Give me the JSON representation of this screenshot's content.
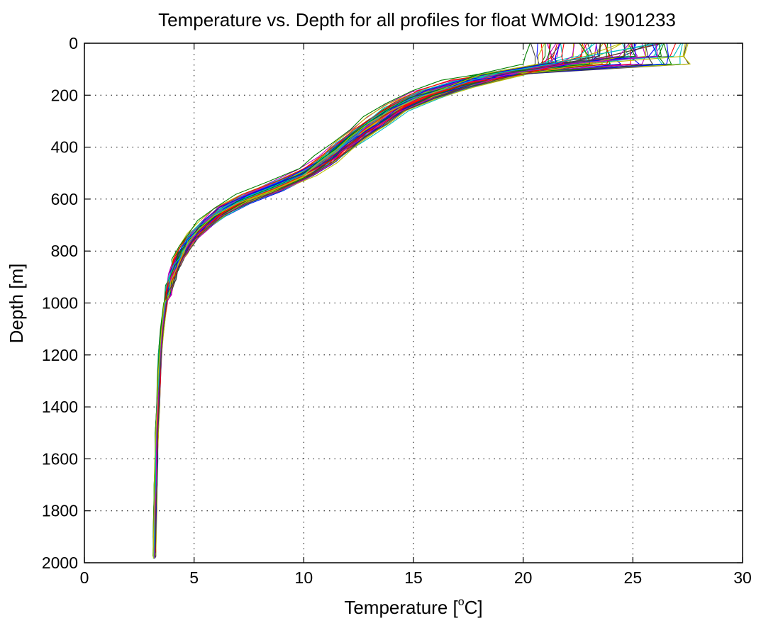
{
  "chart_data": {
    "type": "line",
    "title": "Temperature vs. Depth for all profiles for float WMOId: 1901233",
    "xlabel_main": "Temperature [",
    "xlabel_sup": "o",
    "xlabel_tail": "C]",
    "ylabel": "Depth [m]",
    "xlim": [
      0,
      30
    ],
    "ylim": [
      0,
      2000
    ],
    "y_reversed": true,
    "grid": true,
    "x_ticks": [
      0,
      5,
      10,
      15,
      20,
      25,
      30
    ],
    "y_ticks": [
      0,
      200,
      400,
      600,
      800,
      1000,
      1200,
      1400,
      1600,
      1800,
      2000
    ],
    "x_tick_labels": [
      "0",
      "5",
      "10",
      "15",
      "20",
      "25",
      "30"
    ],
    "y_tick_labels": [
      "0",
      "200",
      "400",
      "600",
      "800",
      "1000",
      "1200",
      "1400",
      "1600",
      "1800",
      "2000"
    ],
    "series_colors": [
      "#0000ff",
      "#008000",
      "#ff0000",
      "#00bfbf",
      "#bf00bf",
      "#bfbf00",
      "#404040"
    ],
    "profile_count": 70,
    "representative_profile": {
      "depth": [
        0,
        50,
        80,
        120,
        160,
        200,
        250,
        300,
        350,
        400,
        450,
        500,
        550,
        600,
        650,
        700,
        750,
        800,
        850,
        900,
        950,
        1000,
        1100,
        1200,
        1300,
        1400,
        1500,
        1600,
        1700,
        1800,
        1900,
        1975
      ],
      "temperature": [
        24.0,
        23.5,
        21.8,
        19.0,
        17.0,
        15.5,
        14.2,
        13.3,
        12.5,
        11.7,
        11.0,
        10.1,
        8.8,
        7.3,
        6.2,
        5.5,
        4.9,
        4.5,
        4.2,
        4.0,
        3.85,
        3.7,
        3.55,
        3.45,
        3.4,
        3.35,
        3.3,
        3.28,
        3.25,
        3.22,
        3.2,
        3.2
      ]
    }
  }
}
